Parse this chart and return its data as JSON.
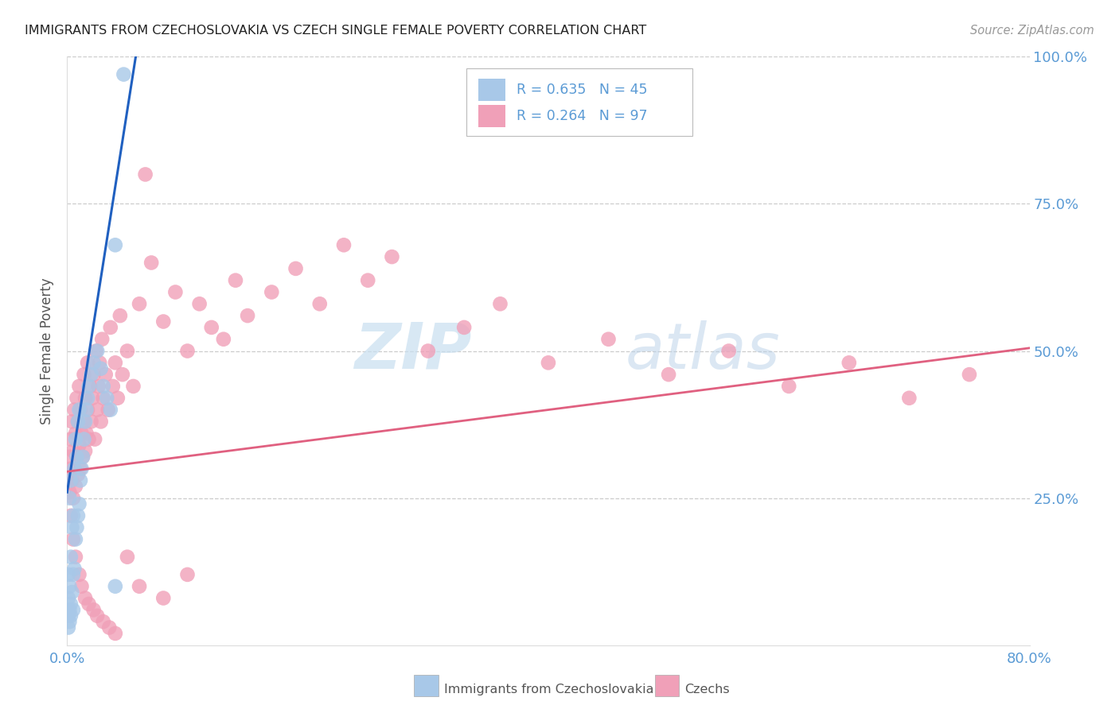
{
  "title": "IMMIGRANTS FROM CZECHOSLOVAKIA VS CZECH SINGLE FEMALE POVERTY CORRELATION CHART",
  "source": "Source: ZipAtlas.com",
  "ylabel": "Single Female Poverty",
  "legend_label_blue": "Immigrants from Czechoslovakia",
  "legend_label_pink": "Czechs",
  "legend_r_blue": "R = 0.635",
  "legend_n_blue": "N = 45",
  "legend_r_pink": "R = 0.264",
  "legend_n_pink": "N = 97",
  "title_color": "#222222",
  "source_color": "#999999",
  "tick_label_color": "#5b9bd5",
  "grid_color": "#cccccc",
  "blue_scatter_color": "#a8c8e8",
  "pink_scatter_color": "#f0a0b8",
  "blue_line_color": "#2060c0",
  "pink_line_color": "#e06080",
  "xlim": [
    0.0,
    0.8
  ],
  "ylim": [
    0.0,
    1.0
  ],
  "blue_trend_x": [
    0.0,
    0.057
  ],
  "blue_trend_y": [
    0.26,
    1.0
  ],
  "pink_trend_x": [
    0.0,
    0.8
  ],
  "pink_trend_y": [
    0.295,
    0.505
  ],
  "blue_x": [
    0.047,
    0.001,
    0.001,
    0.001,
    0.002,
    0.002,
    0.002,
    0.003,
    0.003,
    0.003,
    0.004,
    0.004,
    0.005,
    0.005,
    0.006,
    0.006,
    0.007,
    0.007,
    0.008,
    0.008,
    0.009,
    0.009,
    0.01,
    0.01,
    0.011,
    0.012,
    0.013,
    0.014,
    0.015,
    0.016,
    0.017,
    0.018,
    0.02,
    0.022,
    0.025,
    0.028,
    0.03,
    0.033,
    0.036,
    0.04,
    0.001,
    0.002,
    0.003,
    0.005,
    0.04
  ],
  "blue_y": [
    0.97,
    0.05,
    0.08,
    0.12,
    0.06,
    0.1,
    0.25,
    0.07,
    0.15,
    0.28,
    0.09,
    0.2,
    0.12,
    0.22,
    0.13,
    0.3,
    0.18,
    0.35,
    0.2,
    0.32,
    0.22,
    0.38,
    0.24,
    0.4,
    0.28,
    0.3,
    0.32,
    0.35,
    0.38,
    0.4,
    0.42,
    0.44,
    0.46,
    0.48,
    0.5,
    0.47,
    0.44,
    0.42,
    0.4,
    0.68,
    0.03,
    0.04,
    0.05,
    0.06,
    0.1
  ],
  "pink_x": [
    0.001,
    0.002,
    0.002,
    0.003,
    0.003,
    0.004,
    0.004,
    0.005,
    0.005,
    0.006,
    0.006,
    0.007,
    0.007,
    0.008,
    0.008,
    0.009,
    0.009,
    0.01,
    0.01,
    0.011,
    0.011,
    0.012,
    0.013,
    0.014,
    0.014,
    0.015,
    0.015,
    0.016,
    0.017,
    0.017,
    0.018,
    0.019,
    0.02,
    0.021,
    0.022,
    0.023,
    0.024,
    0.025,
    0.026,
    0.027,
    0.028,
    0.029,
    0.03,
    0.032,
    0.034,
    0.036,
    0.038,
    0.04,
    0.042,
    0.044,
    0.046,
    0.05,
    0.055,
    0.06,
    0.065,
    0.07,
    0.08,
    0.09,
    0.1,
    0.11,
    0.12,
    0.13,
    0.14,
    0.15,
    0.17,
    0.19,
    0.21,
    0.23,
    0.25,
    0.27,
    0.3,
    0.33,
    0.36,
    0.4,
    0.45,
    0.5,
    0.55,
    0.6,
    0.65,
    0.7,
    0.75,
    0.003,
    0.005,
    0.007,
    0.01,
    0.012,
    0.015,
    0.018,
    0.022,
    0.025,
    0.03,
    0.035,
    0.04,
    0.05,
    0.06,
    0.08,
    0.1
  ],
  "pink_y": [
    0.28,
    0.32,
    0.26,
    0.3,
    0.35,
    0.28,
    0.38,
    0.25,
    0.33,
    0.3,
    0.4,
    0.27,
    0.36,
    0.32,
    0.42,
    0.29,
    0.38,
    0.34,
    0.44,
    0.3,
    0.4,
    0.36,
    0.32,
    0.38,
    0.46,
    0.33,
    0.42,
    0.36,
    0.4,
    0.48,
    0.35,
    0.44,
    0.38,
    0.42,
    0.46,
    0.35,
    0.5,
    0.4,
    0.44,
    0.48,
    0.38,
    0.52,
    0.42,
    0.46,
    0.4,
    0.54,
    0.44,
    0.48,
    0.42,
    0.56,
    0.46,
    0.5,
    0.44,
    0.58,
    0.8,
    0.65,
    0.55,
    0.6,
    0.5,
    0.58,
    0.54,
    0.52,
    0.62,
    0.56,
    0.6,
    0.64,
    0.58,
    0.68,
    0.62,
    0.66,
    0.5,
    0.54,
    0.58,
    0.48,
    0.52,
    0.46,
    0.5,
    0.44,
    0.48,
    0.42,
    0.46,
    0.22,
    0.18,
    0.15,
    0.12,
    0.1,
    0.08,
    0.07,
    0.06,
    0.05,
    0.04,
    0.03,
    0.02,
    0.15,
    0.1,
    0.08,
    0.12
  ]
}
